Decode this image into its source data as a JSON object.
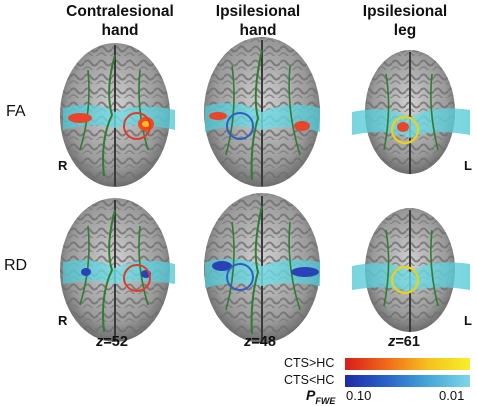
{
  "columns": [
    {
      "line1": "Contralesional",
      "line2": "hand",
      "z_prefix": "z",
      "z_value": "=52"
    },
    {
      "line1": "Ipsilesional",
      "line2": "hand",
      "z_prefix": "z",
      "z_value": "=48"
    },
    {
      "line1": "Ipsilesional",
      "line2": "leg",
      "z_prefix": "z",
      "z_value": "=61"
    }
  ],
  "rows": [
    {
      "label": "FA"
    },
    {
      "label": "RD"
    }
  ],
  "orientation": {
    "right": "R",
    "left": "L"
  },
  "legend": {
    "increase_label": "CTS>HC",
    "decrease_label": "CTS<HC",
    "p_label": "P",
    "p_subscript": "FWE",
    "p_min": "0.10",
    "p_max": "0.01"
  },
  "colors": {
    "increase_low": "#d81c1c",
    "increase_high": "#f7ef2a",
    "decrease_low": "#1c2aa8",
    "decrease_high": "#7fd6e8",
    "skeleton": "#2e7d32",
    "roi_red": "#e23b2a",
    "roi_blue": "#2f5fc4",
    "roi_yellow": "#e8d21a",
    "tract": "#5fd3dc"
  }
}
